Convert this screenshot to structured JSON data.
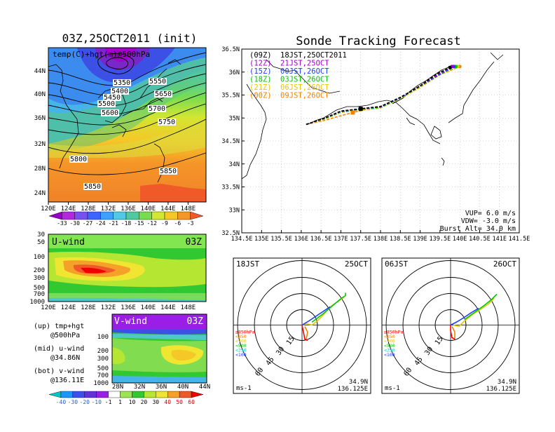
{
  "map_panel": {
    "title": "03Z,25OCT2011 (init)",
    "label": "temp(C)+hgt(m)@500hPa",
    "x_ticks": [
      "120E",
      "124E",
      "128E",
      "132E",
      "136E",
      "140E",
      "144E",
      "148E"
    ],
    "y_ticks": [
      "44N",
      "40N",
      "36N",
      "32N",
      "28N",
      "24N"
    ],
    "contours": [
      "5350",
      "5400",
      "5450",
      "5500",
      "5550",
      "5600",
      "5650",
      "5700",
      "5750",
      "5800",
      "5850",
      "5850"
    ],
    "colorbar": [
      "-33",
      "-30",
      "-27",
      "-24",
      "-21",
      "-18",
      "-15",
      "-12",
      "-9",
      "-6",
      "-3"
    ]
  },
  "uwind_panel": {
    "label": "U-wind",
    "time": "03Z",
    "y_ticks": [
      "30",
      "50",
      "100",
      "200",
      "300",
      "500",
      "700",
      "1000"
    ],
    "x_ticks": [
      "120E",
      "124E",
      "128E",
      "132E",
      "136E",
      "140E",
      "144E",
      "148E"
    ]
  },
  "vwind_panel": {
    "label": "V-wind",
    "time": "03Z",
    "y_ticks": [
      "100",
      "200",
      "300",
      "500",
      "700",
      "1000"
    ],
    "x_ticks": [
      "28N",
      "32N",
      "36N",
      "40N",
      "44N"
    ],
    "colorbar": [
      "-40",
      "-30",
      "-20",
      "-10",
      "-1",
      "1",
      "10",
      "20",
      "30",
      "40",
      "50",
      "60"
    ]
  },
  "notes": {
    "up": "(up) tmp+hgt",
    "up2": "@500hPa",
    "mid": "(mid) u-wind",
    "mid2": "@34.86N",
    "bot": "(bot) v-wind",
    "bot2": "@136.11E"
  },
  "track_panel": {
    "title": "Sonde Tracking Forecast",
    "x_ticks": [
      "134.5E",
      "135E",
      "135.5E",
      "136E",
      "136.5E",
      "137E",
      "137.5E",
      "138E",
      "138.5E",
      "139E",
      "139.5E",
      "140E",
      "140.5E",
      "141E",
      "141.5E"
    ],
    "y_ticks": [
      "36.5N",
      "36N",
      "35.5N",
      "35N",
      "34.5N",
      "34N",
      "33.5N",
      "33N",
      "32.5N"
    ],
    "legend": [
      {
        "run": "(09Z)",
        "time": "18JST,25OCT2011",
        "color": "#000000"
      },
      {
        "run": "(12Z)",
        "time": "21JST,25OCT",
        "color": "#a000c8"
      },
      {
        "run": "(15Z)",
        "time": "00JST,26OCT",
        "color": "#1e3cff"
      },
      {
        "run": "(18Z)",
        "time": "03JST,26OCT",
        "color": "#00c800"
      },
      {
        "run": "(21Z)",
        "time": "06JST,26OCT",
        "color": "#e6c800"
      },
      {
        "run": "(00Z)",
        "time": "09JST,26OCT",
        "color": "#f08200"
      }
    ],
    "vup": "VUP= 6.0 m/s",
    "vdw": "VDW= -3.0 m/s",
    "burst": "Burst Alt= 34.0 km"
  },
  "hodo_left": {
    "time": "18JST",
    "date": "25OCT",
    "rings": [
      "15",
      "30",
      "45",
      "60"
    ],
    "levels": [
      "≥850hPa",
      "<850",
      "<700",
      "<500",
      "<250",
      "<100"
    ],
    "level_colors": [
      "#ff0000",
      "#f08200",
      "#e6c800",
      "#00c800",
      "#00c8c8",
      "#1e3cff"
    ],
    "unit": "ms-1",
    "lat": "34.9N",
    "lon": "136.125E"
  },
  "hodo_right": {
    "time": "06JST",
    "date": "26OCT",
    "rings": [
      "15",
      "30",
      "45",
      "60"
    ],
    "levels": [
      "≥850hPa",
      "<850",
      "<700",
      "<500",
      "<250",
      "<100"
    ],
    "level_colors": [
      "#ff0000",
      "#f08200",
      "#e6c800",
      "#00c800",
      "#00c8c8",
      "#1e3cff"
    ],
    "unit": "ms-1",
    "lat": "34.9N",
    "lon": "136.125E"
  },
  "chart_data": [
    {
      "type": "heatmap",
      "title": "03Z,25OCT2011 (init)",
      "subtitle": "temp(C)+hgt(m)@500hPa",
      "xlim": [
        120,
        150
      ],
      "ylim": [
        22,
        47
      ]
    },
    {
      "type": "heatmap",
      "title": "U-wind",
      "subtitle": "03Z",
      "xlim": [
        120,
        150
      ],
      "y_levels_hPa": [
        30,
        50,
        100,
        200,
        300,
        500,
        700,
        1000
      ]
    },
    {
      "type": "heatmap",
      "title": "V-wind",
      "subtitle": "03Z",
      "xlim": [
        26,
        44
      ]
    },
    {
      "type": "line",
      "title": "Sonde Tracking Forecast",
      "xlim": [
        134.5,
        141.5
      ],
      "ylim": [
        32.5,
        36.5
      ],
      "launch": {
        "lon": 136.125,
        "lat": 34.86
      },
      "series": [
        {
          "name": "(09Z) 18JST,25OCT2011",
          "color": "#000000",
          "x": [
            136.125,
            136.6,
            137.0,
            137.5,
            138.0,
            138.5,
            139.0,
            139.4,
            139.75
          ],
          "y": [
            34.86,
            35.0,
            35.15,
            35.2,
            35.25,
            35.45,
            35.7,
            35.95,
            36.1
          ]
        },
        {
          "name": "(12Z) 21JST,25OCT",
          "color": "#a000c8",
          "x": [
            136.125,
            136.6,
            137.0,
            137.5,
            138.0,
            138.5,
            139.0,
            139.45,
            139.8
          ],
          "y": [
            34.86,
            35.0,
            35.15,
            35.2,
            35.25,
            35.45,
            35.7,
            35.95,
            36.12
          ]
        },
        {
          "name": "(15Z) 00JST,26OCT",
          "color": "#1e3cff",
          "x": [
            136.125,
            136.6,
            137.0,
            137.5,
            138.0,
            138.5,
            139.0,
            139.5,
            139.85
          ],
          "y": [
            34.86,
            35.0,
            35.14,
            35.2,
            35.24,
            35.44,
            35.7,
            35.95,
            36.12
          ]
        },
        {
          "name": "(18Z) 03JST,26OCT",
          "color": "#00c800",
          "x": [
            136.125,
            136.6,
            137.0,
            137.5,
            138.0,
            138.5,
            139.0,
            139.5,
            139.9
          ],
          "y": [
            34.86,
            34.99,
            35.13,
            35.19,
            35.23,
            35.43,
            35.69,
            35.95,
            36.12
          ]
        },
        {
          "name": "(21Z) 06JST,26OCT",
          "color": "#e6c800",
          "x": [
            136.125,
            136.6,
            137.0,
            137.5,
            138.0,
            138.5,
            139.0,
            139.5,
            139.95
          ],
          "y": [
            34.86,
            34.98,
            35.12,
            35.18,
            35.22,
            35.42,
            35.68,
            35.94,
            36.12
          ]
        },
        {
          "name": "(00Z) 09JST,26OCT",
          "color": "#f08200",
          "x": [
            136.125,
            136.6,
            137.0,
            137.3,
            137.6,
            138.0,
            138.5,
            139.0,
            139.5,
            140.0
          ],
          "y": [
            34.86,
            34.95,
            35.05,
            35.12,
            35.18,
            35.22,
            35.42,
            35.67,
            35.94,
            36.12
          ]
        }
      ]
    },
    {
      "type": "line",
      "title": "18JST 25OCT",
      "rings_ms": [
        15,
        30,
        45,
        60
      ]
    },
    {
      "type": "line",
      "title": "06JST 26OCT",
      "rings_ms": [
        15,
        30,
        45,
        60
      ]
    }
  ]
}
